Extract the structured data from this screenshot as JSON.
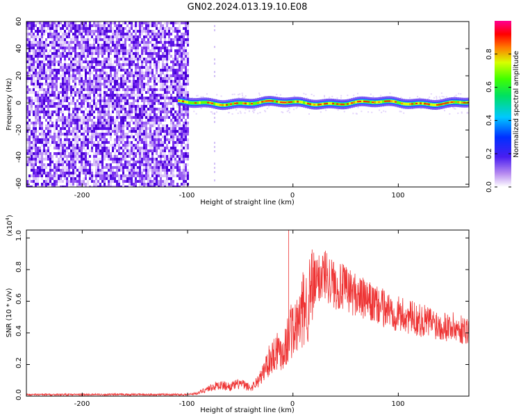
{
  "title": "GN02.2024.013.19.10.E08",
  "chart_data": [
    {
      "type": "heatmap",
      "xlabel": "Height of straight line (km)",
      "ylabel": "Frequency (Hz)",
      "xlim": [
        -253,
        167
      ],
      "ylim": [
        -62,
        60
      ],
      "xticks": [
        "-200",
        "-100",
        "0",
        "100"
      ],
      "yticks": [
        "60",
        "40",
        "20",
        "0",
        "-20",
        "-40",
        "-60"
      ],
      "noise_region_x": [
        -253,
        -100
      ],
      "signal_band_center_hz": 0,
      "colorbar": {
        "label": "Normalized spectral amplitude",
        "range": [
          0,
          1
        ],
        "ticks": [
          "0.0",
          "0.2",
          "0.4",
          "0.6",
          "0.8"
        ]
      }
    },
    {
      "type": "line",
      "xlabel": "Height of straight line (km)",
      "ylabel": "SNR (10 * v/v)",
      "exponent_label": "(x10",
      "exponent_sup": "4",
      "exponent_close": ")",
      "xlim": [
        -253,
        167
      ],
      "ylim": [
        0,
        1.05
      ],
      "xticks": [
        "-200",
        "-100",
        "0",
        "100"
      ],
      "yticks": [
        "1.0",
        "0.8",
        "0.6",
        "0.4",
        "0.2",
        "0.0"
      ],
      "series": [
        {
          "color": "#ee3333",
          "x": [
            -253,
            -200,
            -150,
            -100,
            -90,
            -80,
            -70,
            -60,
            -50,
            -40,
            -30,
            -25,
            -20,
            -15,
            -10,
            -5,
            -2,
            0,
            5,
            10,
            15,
            20,
            25,
            30,
            35,
            40,
            50,
            60,
            70,
            80,
            90,
            100,
            110,
            120,
            130,
            140,
            150,
            160,
            167
          ],
          "y": [
            0.01,
            0.01,
            0.01,
            0.01,
            0.02,
            0.05,
            0.07,
            0.06,
            0.08,
            0.05,
            0.12,
            0.2,
            0.25,
            0.3,
            0.28,
            0.35,
            0.45,
            0.4,
            0.45,
            0.55,
            0.6,
            0.7,
            0.75,
            0.78,
            0.74,
            0.7,
            0.68,
            0.64,
            0.6,
            0.57,
            0.55,
            0.52,
            0.5,
            0.48,
            0.47,
            0.45,
            0.44,
            0.42,
            0.42
          ]
        }
      ]
    }
  ]
}
